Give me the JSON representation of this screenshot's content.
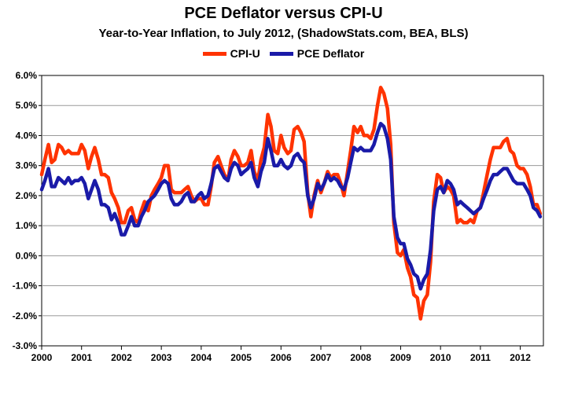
{
  "chart_data": {
    "type": "line",
    "title": "PCE Deflator versus CPI-U",
    "subtitle": "Year-to-Year Inflation, to July 2012, (ShadowStats.com, BEA, BLS)",
    "xlabel": "",
    "ylabel": "",
    "ylim": [
      -3.0,
      6.0
    ],
    "y_ticks": [
      "-3.0%",
      "-2.0%",
      "-1.0%",
      "0.0%",
      "1.0%",
      "2.0%",
      "3.0%",
      "4.0%",
      "5.0%",
      "6.0%"
    ],
    "x_ticks": [
      "2000",
      "2001",
      "2002",
      "2003",
      "2004",
      "2005",
      "2006",
      "2007",
      "2008",
      "2009",
      "2010",
      "2011",
      "2012"
    ],
    "xlim": [
      2000.0,
      2012.58
    ],
    "grid": true,
    "legend": "top-center",
    "series": [
      {
        "name": "CPI-U",
        "color": "#ff3300",
        "points": [
          [
            2000.0,
            2.7
          ],
          [
            2000.08,
            3.2
          ],
          [
            2000.17,
            3.7
          ],
          [
            2000.25,
            3.1
          ],
          [
            2000.33,
            3.2
          ],
          [
            2000.42,
            3.7
          ],
          [
            2000.5,
            3.6
          ],
          [
            2000.58,
            3.4
          ],
          [
            2000.67,
            3.5
          ],
          [
            2000.75,
            3.4
          ],
          [
            2000.83,
            3.4
          ],
          [
            2000.92,
            3.4
          ],
          [
            2001.0,
            3.7
          ],
          [
            2001.08,
            3.5
          ],
          [
            2001.17,
            2.9
          ],
          [
            2001.25,
            3.3
          ],
          [
            2001.33,
            3.6
          ],
          [
            2001.42,
            3.2
          ],
          [
            2001.5,
            2.7
          ],
          [
            2001.58,
            2.7
          ],
          [
            2001.67,
            2.6
          ],
          [
            2001.75,
            2.1
          ],
          [
            2001.83,
            1.9
          ],
          [
            2001.92,
            1.6
          ],
          [
            2002.0,
            1.1
          ],
          [
            2002.08,
            1.1
          ],
          [
            2002.17,
            1.5
          ],
          [
            2002.25,
            1.6
          ],
          [
            2002.33,
            1.2
          ],
          [
            2002.42,
            1.1
          ],
          [
            2002.5,
            1.5
          ],
          [
            2002.58,
            1.8
          ],
          [
            2002.67,
            1.5
          ],
          [
            2002.75,
            2.0
          ],
          [
            2002.83,
            2.2
          ],
          [
            2002.92,
            2.4
          ],
          [
            2003.0,
            2.6
          ],
          [
            2003.08,
            3.0
          ],
          [
            2003.17,
            3.0
          ],
          [
            2003.25,
            2.2
          ],
          [
            2003.33,
            2.1
          ],
          [
            2003.42,
            2.1
          ],
          [
            2003.5,
            2.1
          ],
          [
            2003.58,
            2.2
          ],
          [
            2003.67,
            2.3
          ],
          [
            2003.75,
            2.0
          ],
          [
            2003.83,
            1.8
          ],
          [
            2003.92,
            1.9
          ],
          [
            2004.0,
            1.9
          ],
          [
            2004.08,
            1.7
          ],
          [
            2004.17,
            1.7
          ],
          [
            2004.25,
            2.3
          ],
          [
            2004.33,
            3.1
          ],
          [
            2004.42,
            3.3
          ],
          [
            2004.5,
            3.0
          ],
          [
            2004.58,
            2.7
          ],
          [
            2004.67,
            2.5
          ],
          [
            2004.75,
            3.2
          ],
          [
            2004.83,
            3.5
          ],
          [
            2004.92,
            3.3
          ],
          [
            2005.0,
            3.0
          ],
          [
            2005.08,
            3.0
          ],
          [
            2005.17,
            3.1
          ],
          [
            2005.25,
            3.5
          ],
          [
            2005.33,
            2.8
          ],
          [
            2005.42,
            2.5
          ],
          [
            2005.5,
            3.2
          ],
          [
            2005.58,
            3.6
          ],
          [
            2005.67,
            4.7
          ],
          [
            2005.75,
            4.3
          ],
          [
            2005.83,
            3.5
          ],
          [
            2005.92,
            3.4
          ],
          [
            2006.0,
            4.0
          ],
          [
            2006.08,
            3.6
          ],
          [
            2006.17,
            3.4
          ],
          [
            2006.25,
            3.5
          ],
          [
            2006.33,
            4.2
          ],
          [
            2006.42,
            4.3
          ],
          [
            2006.5,
            4.1
          ],
          [
            2006.58,
            3.8
          ],
          [
            2006.67,
            2.1
          ],
          [
            2006.75,
            1.3
          ],
          [
            2006.83,
            2.0
          ],
          [
            2006.92,
            2.5
          ],
          [
            2007.0,
            2.1
          ],
          [
            2007.08,
            2.4
          ],
          [
            2007.17,
            2.8
          ],
          [
            2007.25,
            2.6
          ],
          [
            2007.33,
            2.7
          ],
          [
            2007.42,
            2.7
          ],
          [
            2007.5,
            2.4
          ],
          [
            2007.58,
            2.0
          ],
          [
            2007.67,
            2.8
          ],
          [
            2007.75,
            3.5
          ],
          [
            2007.83,
            4.3
          ],
          [
            2007.92,
            4.1
          ],
          [
            2008.0,
            4.3
          ],
          [
            2008.08,
            4.0
          ],
          [
            2008.17,
            4.0
          ],
          [
            2008.25,
            3.9
          ],
          [
            2008.33,
            4.2
          ],
          [
            2008.42,
            5.0
          ],
          [
            2008.5,
            5.6
          ],
          [
            2008.58,
            5.4
          ],
          [
            2008.67,
            4.9
          ],
          [
            2008.75,
            3.7
          ],
          [
            2008.83,
            1.1
          ],
          [
            2008.92,
            0.1
          ],
          [
            2009.0,
            0.0
          ],
          [
            2009.08,
            0.2
          ],
          [
            2009.17,
            -0.4
          ],
          [
            2009.25,
            -0.7
          ],
          [
            2009.33,
            -1.3
          ],
          [
            2009.42,
            -1.4
          ],
          [
            2009.5,
            -2.1
          ],
          [
            2009.58,
            -1.5
          ],
          [
            2009.67,
            -1.3
          ],
          [
            2009.75,
            -0.2
          ],
          [
            2009.83,
            1.8
          ],
          [
            2009.92,
            2.7
          ],
          [
            2010.0,
            2.6
          ],
          [
            2010.08,
            2.1
          ],
          [
            2010.17,
            2.3
          ],
          [
            2010.25,
            2.2
          ],
          [
            2010.33,
            2.0
          ],
          [
            2010.42,
            1.1
          ],
          [
            2010.5,
            1.2
          ],
          [
            2010.58,
            1.1
          ],
          [
            2010.67,
            1.1
          ],
          [
            2010.75,
            1.2
          ],
          [
            2010.83,
            1.1
          ],
          [
            2010.92,
            1.5
          ],
          [
            2011.0,
            1.6
          ],
          [
            2011.08,
            2.1
          ],
          [
            2011.17,
            2.7
          ],
          [
            2011.25,
            3.2
          ],
          [
            2011.33,
            3.6
          ],
          [
            2011.42,
            3.6
          ],
          [
            2011.5,
            3.6
          ],
          [
            2011.58,
            3.8
          ],
          [
            2011.67,
            3.9
          ],
          [
            2011.75,
            3.5
          ],
          [
            2011.83,
            3.4
          ],
          [
            2011.92,
            3.0
          ],
          [
            2012.0,
            2.9
          ],
          [
            2012.08,
            2.9
          ],
          [
            2012.17,
            2.7
          ],
          [
            2012.25,
            2.3
          ],
          [
            2012.33,
            1.7
          ],
          [
            2012.42,
            1.7
          ],
          [
            2012.5,
            1.4
          ]
        ]
      },
      {
        "name": "PCE Deflator",
        "color": "#1a1aa8",
        "points": [
          [
            2000.0,
            2.2
          ],
          [
            2000.08,
            2.5
          ],
          [
            2000.17,
            2.9
          ],
          [
            2000.25,
            2.3
          ],
          [
            2000.33,
            2.3
          ],
          [
            2000.42,
            2.6
          ],
          [
            2000.5,
            2.5
          ],
          [
            2000.58,
            2.4
          ],
          [
            2000.67,
            2.6
          ],
          [
            2000.75,
            2.4
          ],
          [
            2000.83,
            2.5
          ],
          [
            2000.92,
            2.5
          ],
          [
            2001.0,
            2.6
          ],
          [
            2001.08,
            2.4
          ],
          [
            2001.17,
            1.9
          ],
          [
            2001.25,
            2.2
          ],
          [
            2001.33,
            2.5
          ],
          [
            2001.42,
            2.2
          ],
          [
            2001.5,
            1.7
          ],
          [
            2001.58,
            1.7
          ],
          [
            2001.67,
            1.6
          ],
          [
            2001.75,
            1.2
          ],
          [
            2001.83,
            1.4
          ],
          [
            2001.92,
            1.1
          ],
          [
            2002.0,
            0.7
          ],
          [
            2002.08,
            0.7
          ],
          [
            2002.17,
            1.0
          ],
          [
            2002.25,
            1.3
          ],
          [
            2002.33,
            1.0
          ],
          [
            2002.42,
            1.0
          ],
          [
            2002.5,
            1.3
          ],
          [
            2002.58,
            1.5
          ],
          [
            2002.67,
            1.8
          ],
          [
            2002.75,
            1.9
          ],
          [
            2002.83,
            2.0
          ],
          [
            2002.92,
            2.2
          ],
          [
            2003.0,
            2.4
          ],
          [
            2003.08,
            2.5
          ],
          [
            2003.17,
            2.4
          ],
          [
            2003.25,
            1.9
          ],
          [
            2003.33,
            1.7
          ],
          [
            2003.42,
            1.7
          ],
          [
            2003.5,
            1.8
          ],
          [
            2003.58,
            2.0
          ],
          [
            2003.67,
            2.1
          ],
          [
            2003.75,
            1.8
          ],
          [
            2003.83,
            1.8
          ],
          [
            2003.92,
            2.0
          ],
          [
            2004.0,
            2.1
          ],
          [
            2004.08,
            1.9
          ],
          [
            2004.17,
            2.0
          ],
          [
            2004.25,
            2.4
          ],
          [
            2004.33,
            2.9
          ],
          [
            2004.42,
            3.0
          ],
          [
            2004.5,
            2.8
          ],
          [
            2004.58,
            2.6
          ],
          [
            2004.67,
            2.5
          ],
          [
            2004.75,
            2.9
          ],
          [
            2004.83,
            3.1
          ],
          [
            2004.92,
            3.0
          ],
          [
            2005.0,
            2.7
          ],
          [
            2005.08,
            2.8
          ],
          [
            2005.17,
            2.9
          ],
          [
            2005.25,
            3.1
          ],
          [
            2005.33,
            2.6
          ],
          [
            2005.42,
            2.3
          ],
          [
            2005.5,
            2.8
          ],
          [
            2005.58,
            3.1
          ],
          [
            2005.67,
            3.9
          ],
          [
            2005.75,
            3.5
          ],
          [
            2005.83,
            3.0
          ],
          [
            2005.92,
            3.0
          ],
          [
            2006.0,
            3.2
          ],
          [
            2006.08,
            3.0
          ],
          [
            2006.17,
            2.9
          ],
          [
            2006.25,
            3.0
          ],
          [
            2006.33,
            3.3
          ],
          [
            2006.42,
            3.4
          ],
          [
            2006.5,
            3.2
          ],
          [
            2006.58,
            3.1
          ],
          [
            2006.67,
            2.0
          ],
          [
            2006.75,
            1.6
          ],
          [
            2006.83,
            1.9
          ],
          [
            2006.92,
            2.4
          ],
          [
            2007.0,
            2.2
          ],
          [
            2007.08,
            2.4
          ],
          [
            2007.17,
            2.7
          ],
          [
            2007.25,
            2.5
          ],
          [
            2007.33,
            2.6
          ],
          [
            2007.42,
            2.5
          ],
          [
            2007.5,
            2.3
          ],
          [
            2007.58,
            2.2
          ],
          [
            2007.67,
            2.6
          ],
          [
            2007.75,
            3.1
          ],
          [
            2007.83,
            3.6
          ],
          [
            2007.92,
            3.5
          ],
          [
            2008.0,
            3.6
          ],
          [
            2008.08,
            3.5
          ],
          [
            2008.17,
            3.5
          ],
          [
            2008.25,
            3.5
          ],
          [
            2008.33,
            3.7
          ],
          [
            2008.42,
            4.1
          ],
          [
            2008.5,
            4.4
          ],
          [
            2008.58,
            4.3
          ],
          [
            2008.67,
            3.9
          ],
          [
            2008.75,
            3.2
          ],
          [
            2008.83,
            1.3
          ],
          [
            2008.92,
            0.6
          ],
          [
            2009.0,
            0.4
          ],
          [
            2009.08,
            0.4
          ],
          [
            2009.17,
            -0.1
          ],
          [
            2009.25,
            -0.3
          ],
          [
            2009.33,
            -0.6
          ],
          [
            2009.42,
            -0.7
          ],
          [
            2009.5,
            -1.1
          ],
          [
            2009.58,
            -0.8
          ],
          [
            2009.67,
            -0.6
          ],
          [
            2009.75,
            0.2
          ],
          [
            2009.83,
            1.5
          ],
          [
            2009.92,
            2.2
          ],
          [
            2010.0,
            2.3
          ],
          [
            2010.08,
            2.1
          ],
          [
            2010.17,
            2.5
          ],
          [
            2010.25,
            2.4
          ],
          [
            2010.33,
            2.2
          ],
          [
            2010.42,
            1.7
          ],
          [
            2010.5,
            1.8
          ],
          [
            2010.58,
            1.7
          ],
          [
            2010.67,
            1.6
          ],
          [
            2010.75,
            1.5
          ],
          [
            2010.83,
            1.4
          ],
          [
            2010.92,
            1.5
          ],
          [
            2011.0,
            1.6
          ],
          [
            2011.08,
            1.9
          ],
          [
            2011.17,
            2.2
          ],
          [
            2011.25,
            2.5
          ],
          [
            2011.33,
            2.7
          ],
          [
            2011.42,
            2.7
          ],
          [
            2011.5,
            2.8
          ],
          [
            2011.58,
            2.9
          ],
          [
            2011.67,
            2.9
          ],
          [
            2011.75,
            2.7
          ],
          [
            2011.83,
            2.5
          ],
          [
            2011.92,
            2.4
          ],
          [
            2012.0,
            2.4
          ],
          [
            2012.08,
            2.4
          ],
          [
            2012.17,
            2.2
          ],
          [
            2012.25,
            2.0
          ],
          [
            2012.33,
            1.6
          ],
          [
            2012.42,
            1.5
          ],
          [
            2012.5,
            1.3
          ]
        ]
      }
    ]
  }
}
